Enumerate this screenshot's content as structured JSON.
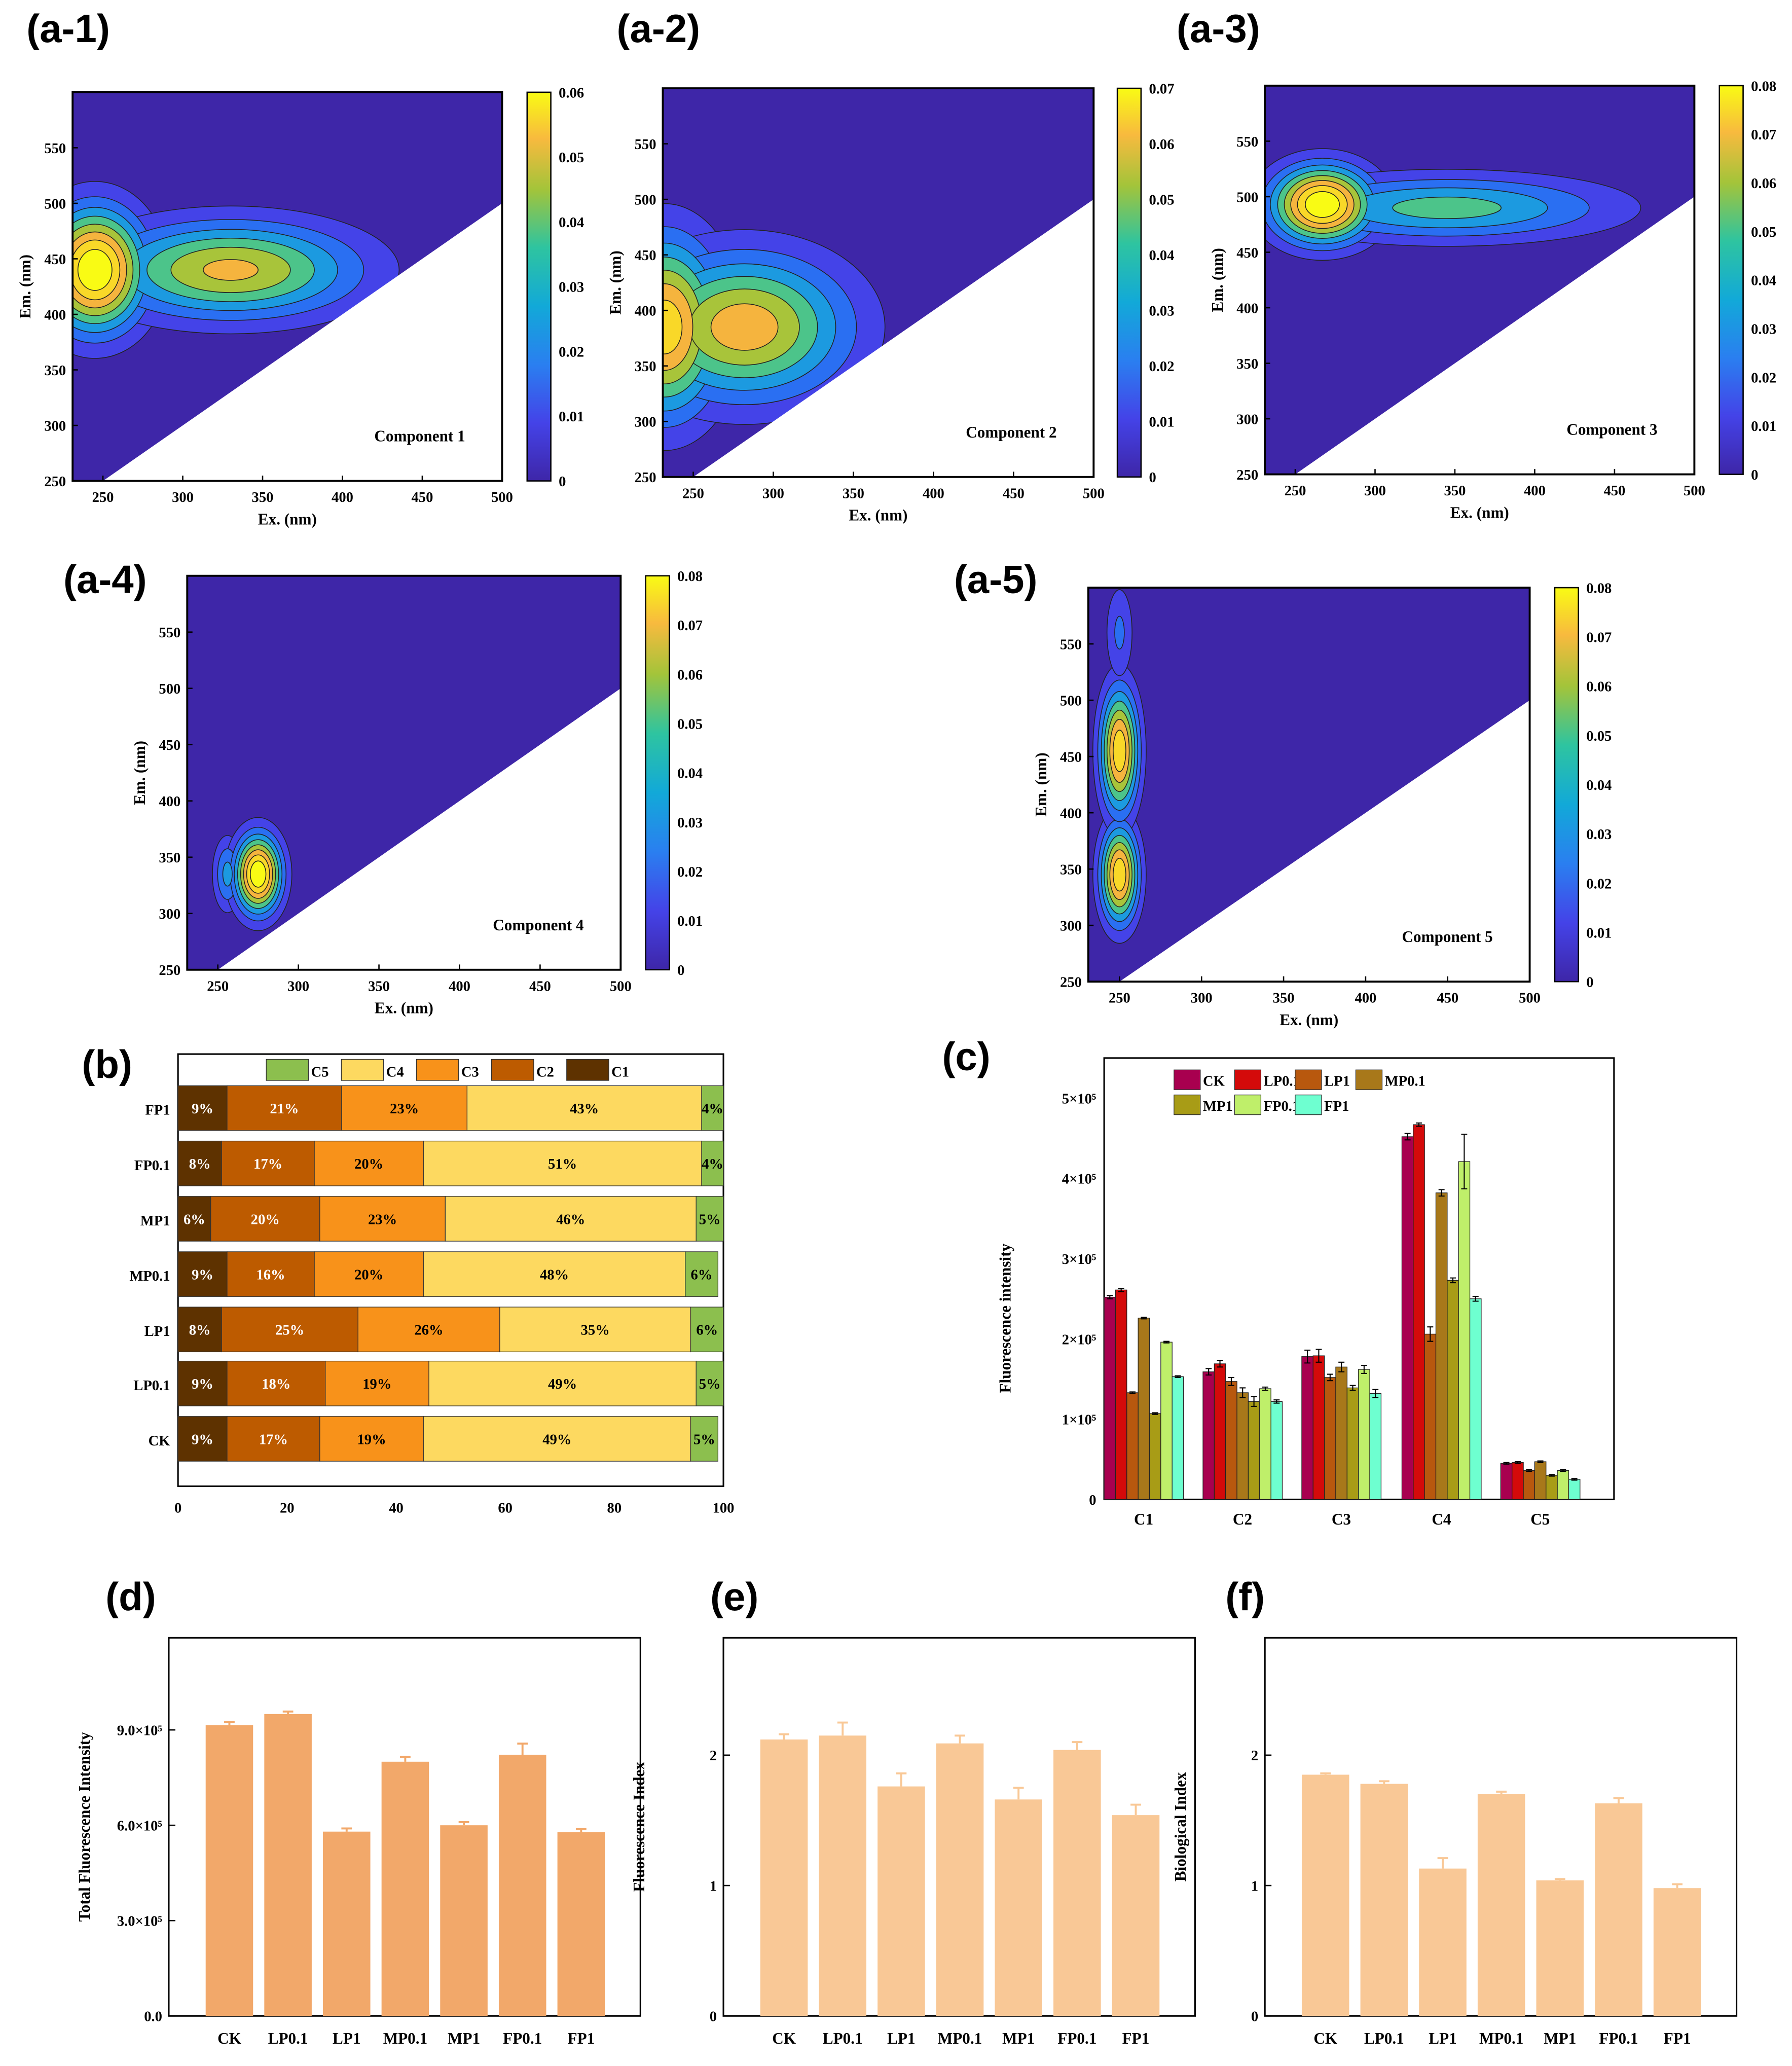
{
  "chart_data": [
    {
      "id": "a-1",
      "type": "heatmap",
      "panel_label": "(a-1)",
      "title": "Component 1",
      "xlabel": "Ex. (nm)",
      "ylabel": "Em. (nm)",
      "xlim": [
        231,
        500
      ],
      "ylim": [
        250,
        600
      ],
      "xticks": [
        250,
        300,
        350,
        400,
        450,
        500
      ],
      "yticks": [
        250,
        300,
        350,
        400,
        450,
        500,
        550
      ],
      "colorbar": {
        "min": 0,
        "max": 0.06,
        "ticks": [
          "0",
          "0.01",
          "0.02",
          "0.03",
          "0.04",
          "0.05",
          "0.06"
        ]
      },
      "peaks": [
        {
          "ex": 245,
          "em": 440,
          "value": 0.06,
          "sx": 22,
          "sy": 38
        },
        {
          "ex": 330,
          "em": 440,
          "value": 0.042,
          "sx": 55,
          "sy": 30
        }
      ]
    },
    {
      "id": "a-2",
      "type": "heatmap",
      "panel_label": "(a-2)",
      "title": "Component 2",
      "xlabel": "Ex. (nm)",
      "ylabel": "Em. (nm)",
      "xlim": [
        231,
        500
      ],
      "ylim": [
        250,
        600
      ],
      "xticks": [
        250,
        300,
        350,
        400,
        450,
        500
      ],
      "yticks": [
        250,
        300,
        350,
        400,
        450,
        500,
        550
      ],
      "colorbar": {
        "min": 0,
        "max": 0.07,
        "ticks": [
          "0",
          "0.01",
          "0.02",
          "0.03",
          "0.04",
          "0.05",
          "0.06",
          "0.07"
        ]
      },
      "peaks": [
        {
          "ex": 232,
          "em": 385,
          "value": 0.06,
          "sx": 25,
          "sy": 55
        },
        {
          "ex": 282,
          "em": 385,
          "value": 0.052,
          "sx": 45,
          "sy": 45
        }
      ]
    },
    {
      "id": "a-3",
      "type": "heatmap",
      "panel_label": "(a-3)",
      "title": "Component 3",
      "xlabel": "Ex. (nm)",
      "ylabel": "Em. (nm)",
      "xlim": [
        231,
        500
      ],
      "ylim": [
        250,
        600
      ],
      "xticks": [
        250,
        300,
        350,
        400,
        450,
        500
      ],
      "yticks": [
        250,
        300,
        350,
        400,
        450,
        500,
        550
      ],
      "colorbar": {
        "min": 0,
        "max": 0.08,
        "ticks": [
          "0",
          "0.01",
          "0.02",
          "0.03",
          "0.04",
          "0.05",
          "0.06",
          "0.07",
          "0.08"
        ]
      },
      "peaks": [
        {
          "ex": 267,
          "em": 493,
          "value": 0.08,
          "sx": 22,
          "sy": 24
        },
        {
          "ex": 345,
          "em": 490,
          "value": 0.04,
          "sx": 70,
          "sy": 20
        }
      ]
    },
    {
      "id": "a-4",
      "type": "heatmap",
      "panel_label": "(a-4)",
      "title": "Component 4",
      "xlabel": "Ex. (nm)",
      "ylabel": "Em. (nm)",
      "xlim": [
        231,
        500
      ],
      "ylim": [
        250,
        600
      ],
      "xticks": [
        250,
        300,
        350,
        400,
        450,
        500
      ],
      "yticks": [
        250,
        300,
        350,
        400,
        450,
        500,
        550
      ],
      "colorbar": {
        "min": 0,
        "max": 0.08,
        "ticks": [
          "0",
          "0.01",
          "0.02",
          "0.03",
          "0.04",
          "0.05",
          "0.06",
          "0.07",
          "0.08"
        ]
      },
      "peaks": [
        {
          "ex": 256,
          "em": 335,
          "value": 0.03,
          "sx": 6,
          "sy": 22
        },
        {
          "ex": 275,
          "em": 335,
          "value": 0.08,
          "sx": 10,
          "sy": 24
        }
      ]
    },
    {
      "id": "a-5",
      "type": "heatmap",
      "panel_label": "(a-5)",
      "title": "Component 5",
      "xlabel": "Ex. (nm)",
      "ylabel": "Em. (nm)",
      "xlim": [
        231,
        500
      ],
      "ylim": [
        250,
        600
      ],
      "xticks": [
        250,
        300,
        350,
        400,
        450,
        500
      ],
      "yticks": [
        250,
        300,
        350,
        400,
        450,
        500,
        550
      ],
      "colorbar": {
        "min": 0,
        "max": 0.08,
        "ticks": [
          "0",
          "0.01",
          "0.02",
          "0.03",
          "0.04",
          "0.05",
          "0.06",
          "0.07",
          "0.08"
        ]
      },
      "peaks": [
        {
          "ex": 250,
          "em": 345,
          "value": 0.07,
          "sx": 8,
          "sy": 30
        },
        {
          "ex": 250,
          "em": 455,
          "value": 0.07,
          "sx": 8,
          "sy": 38
        },
        {
          "ex": 250,
          "em": 560,
          "value": 0.02,
          "sx": 6,
          "sy": 30
        }
      ]
    },
    {
      "id": "b",
      "type": "bar",
      "orientation": "horizontal-stacked",
      "panel_label": "(b)",
      "xlim": [
        0,
        100
      ],
      "xticks": [
        0,
        20,
        40,
        60,
        80,
        100
      ],
      "categories": [
        "FP1",
        "FP0.1",
        "MP1",
        "MP0.1",
        "LP1",
        "LP0.1",
        "CK"
      ],
      "legend": [
        "C5",
        "C4",
        "C3",
        "C2",
        "C1"
      ],
      "series": [
        {
          "name": "C1",
          "color": "#5e3200",
          "values": [
            9,
            8,
            6,
            9,
            8,
            9,
            9
          ]
        },
        {
          "name": "C2",
          "color": "#bd5b00",
          "values": [
            21,
            17,
            20,
            16,
            25,
            18,
            17
          ]
        },
        {
          "name": "C3",
          "color": "#f8921a",
          "values": [
            23,
            20,
            23,
            20,
            26,
            19,
            19
          ]
        },
        {
          "name": "C4",
          "color": "#fdd960",
          "values": [
            43,
            51,
            46,
            48,
            35,
            49,
            49
          ]
        },
        {
          "name": "C5",
          "color": "#8cbf4e",
          "values": [
            4,
            4,
            5,
            6,
            6,
            5,
            5
          ]
        }
      ]
    },
    {
      "id": "c",
      "type": "bar",
      "panel_label": "(c)",
      "ylabel": "Fluorescence intensity",
      "ylim": [
        0,
        550000
      ],
      "yticks": [
        "0",
        "1×10⁵",
        "2×10⁵",
        "3×10⁵",
        "4×10⁵",
        "5×10⁵"
      ],
      "categories": [
        "C1",
        "C2",
        "C3",
        "C4",
        "C5"
      ],
      "series": [
        {
          "name": "CK",
          "color": "#a8004f",
          "values": [
            252000,
            159000,
            178000,
            452000,
            45000
          ],
          "err": [
            2000,
            4000,
            8000,
            4000,
            1000
          ]
        },
        {
          "name": "LP0.1",
          "color": "#d40a0a",
          "values": [
            261000,
            169000,
            179000,
            467000,
            46000
          ],
          "err": [
            2000,
            4000,
            8000,
            2000,
            1000
          ]
        },
        {
          "name": "LP1",
          "color": "#b8580e",
          "values": [
            133000,
            147000,
            152000,
            206000,
            36000
          ],
          "err": [
            1000,
            5000,
            4000,
            9000,
            1000
          ]
        },
        {
          "name": "MP0.1",
          "color": "#a8781a",
          "values": [
            226000,
            133000,
            165000,
            382000,
            47000
          ],
          "err": [
            1000,
            6000,
            6000,
            4000,
            1000
          ]
        },
        {
          "name": "MP1",
          "color": "#a89c16",
          "values": [
            107000,
            122000,
            139000,
            273000,
            30000
          ],
          "err": [
            1000,
            6000,
            3000,
            3000,
            1000
          ]
        },
        {
          "name": "FP0.1",
          "color": "#bfef6a",
          "values": [
            196000,
            138000,
            162000,
            421000,
            36000
          ],
          "err": [
            1000,
            2000,
            5000,
            34000,
            1000
          ]
        },
        {
          "name": "FP1",
          "color": "#6effd0",
          "values": [
            153000,
            122000,
            132000,
            250000,
            25000
          ],
          "err": [
            1000,
            2000,
            5000,
            3000,
            1000
          ]
        }
      ]
    },
    {
      "id": "d",
      "type": "bar",
      "panel_label": "(d)",
      "ylabel": "Total Fluorescence Intensity",
      "ylim": [
        0,
        1190000
      ],
      "yticks": [
        "0.0",
        "3.0×10⁵",
        "6.0×10⁵",
        "9.0×10⁵"
      ],
      "ytick_values": [
        0,
        300000,
        600000,
        900000
      ],
      "color": "#f2a86a",
      "categories": [
        "CK",
        "LP0.1",
        "LP1",
        "MP0.1",
        "MP1",
        "FP0.1",
        "FP1"
      ],
      "values": [
        915000,
        950000,
        580000,
        800000,
        600000,
        822000,
        578000
      ],
      "err": [
        10000,
        8000,
        10000,
        15000,
        10000,
        35000,
        10000
      ]
    },
    {
      "id": "e",
      "type": "bar",
      "panel_label": "(e)",
      "ylabel": "Fluorescence Index",
      "ylim": [
        0,
        2.9
      ],
      "yticks": [
        "0",
        "1",
        "2"
      ],
      "ytick_values": [
        0,
        1,
        2
      ],
      "color": "#f9c896",
      "categories": [
        "CK",
        "LP0.1",
        "LP1",
        "MP0.1",
        "MP1",
        "FP0.1",
        "FP1"
      ],
      "values": [
        2.12,
        2.15,
        1.76,
        2.09,
        1.66,
        2.04,
        1.54
      ],
      "err": [
        0.04,
        0.1,
        0.1,
        0.06,
        0.09,
        0.06,
        0.08
      ]
    },
    {
      "id": "f",
      "type": "bar",
      "panel_label": "(f)",
      "ylabel": "Biological Index",
      "ylim": [
        0,
        2.9
      ],
      "yticks": [
        "0",
        "1",
        "2"
      ],
      "ytick_values": [
        0,
        1,
        2
      ],
      "color": "#f9c896",
      "categories": [
        "CK",
        "LP0.1",
        "LP1",
        "MP0.1",
        "MP1",
        "FP0.1",
        "FP1"
      ],
      "values": [
        1.85,
        1.78,
        1.13,
        1.7,
        1.04,
        1.63,
        0.98
      ],
      "err": [
        0.01,
        0.02,
        0.08,
        0.02,
        0.01,
        0.04,
        0.03
      ]
    }
  ]
}
